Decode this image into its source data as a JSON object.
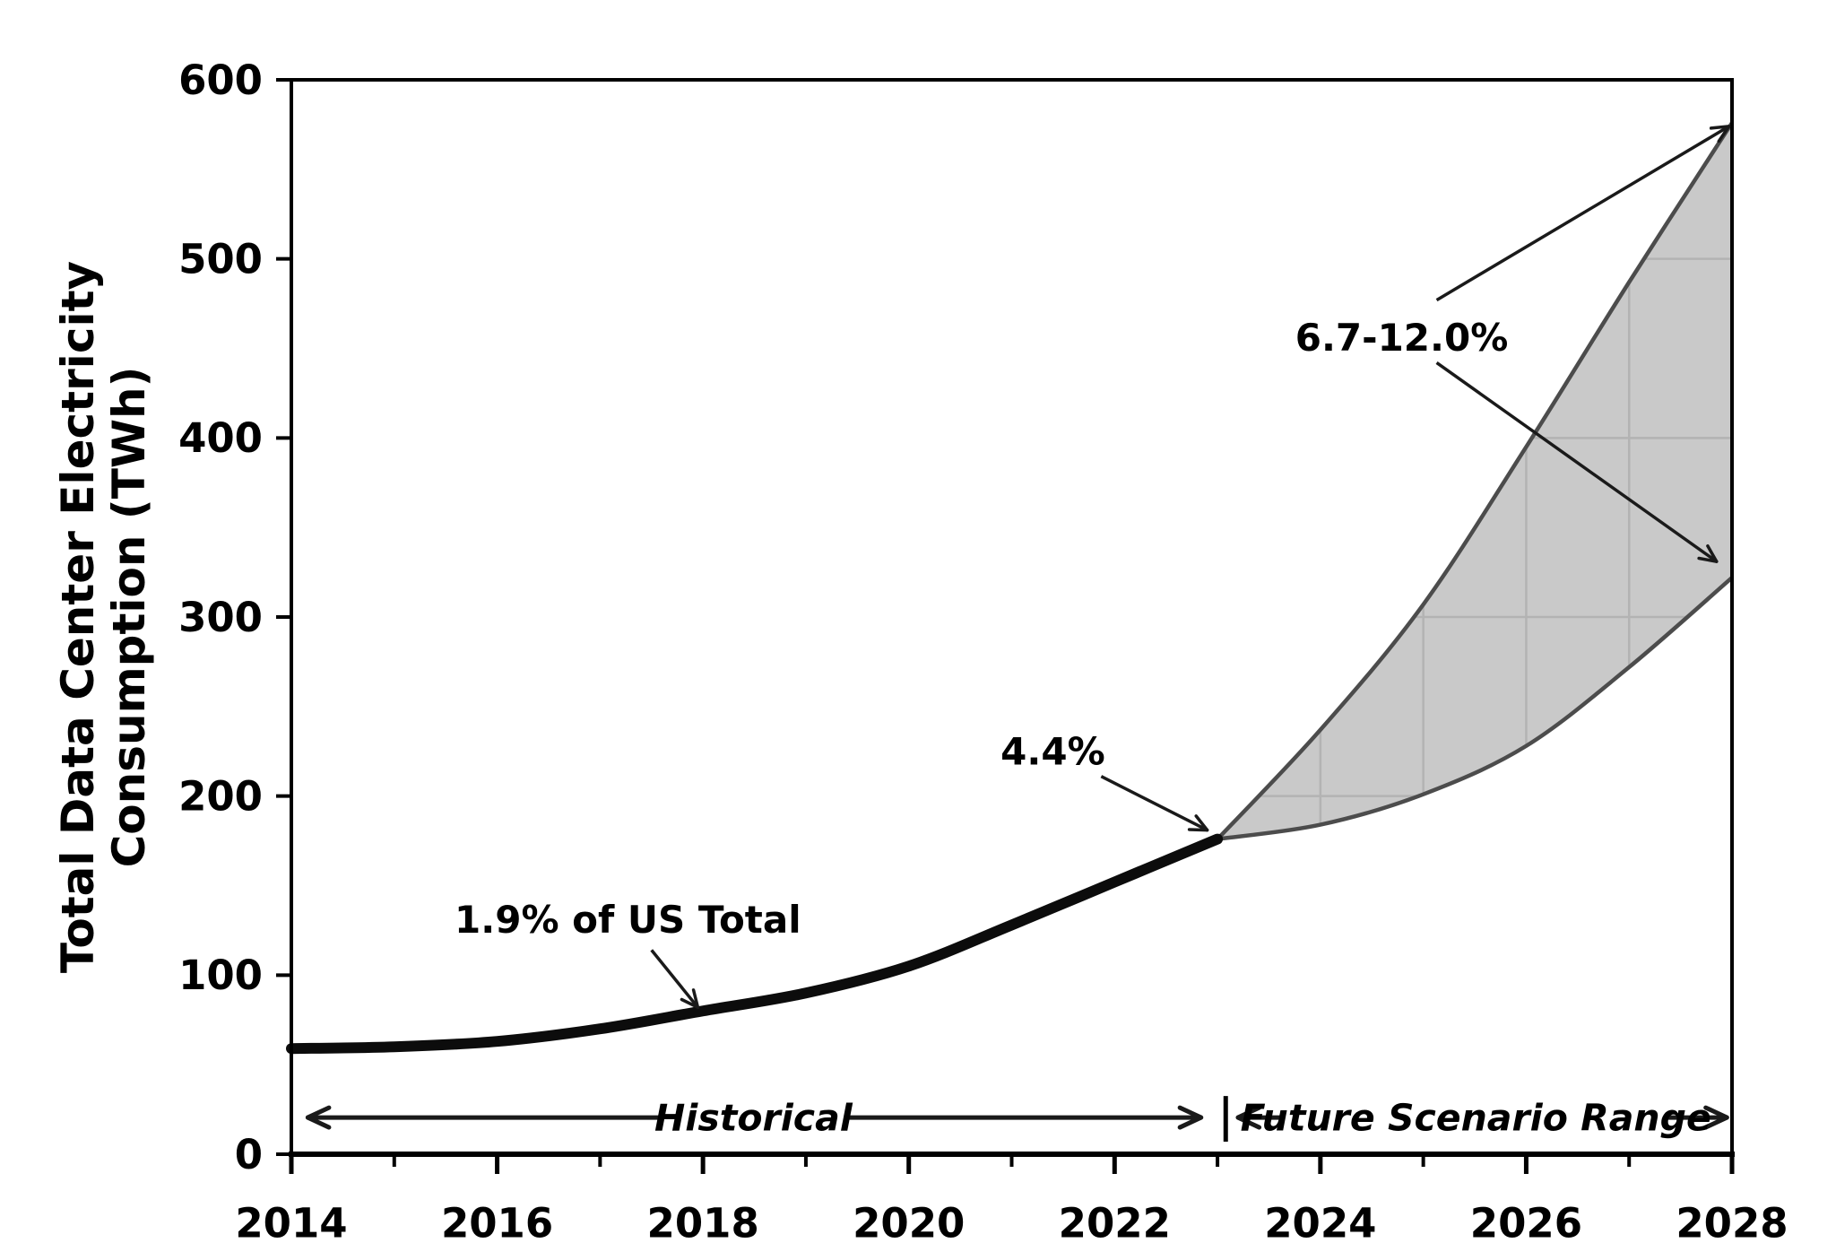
{
  "chart_data": {
    "type": "area",
    "title": "",
    "ylabel_lines": [
      "Total Data Center Electricity",
      "Consumption (TWh)"
    ],
    "xlabel": "",
    "xlim": [
      2014,
      2028
    ],
    "ylim": [
      0,
      600
    ],
    "x_ticks_major": [
      2014,
      2016,
      2018,
      2020,
      2022,
      2024,
      2026,
      2028
    ],
    "x_ticks_minor": [
      2015,
      2017,
      2019,
      2021,
      2023,
      2025,
      2027
    ],
    "y_ticks": [
      0,
      100,
      200,
      300,
      400,
      500,
      600
    ],
    "grid": "faint gridlines visible only inside shaded scenario band",
    "legend_position": "none",
    "series": [
      {
        "name": "historical",
        "x": [
          2014,
          2015,
          2016,
          2017,
          2018,
          2019,
          2020,
          2021,
          2022,
          2023
        ],
        "values": [
          59,
          60,
          63,
          70,
          80,
          90,
          105,
          128,
          152,
          176
        ]
      },
      {
        "name": "future_upper_bound",
        "x": [
          2023,
          2024,
          2025,
          2026,
          2027,
          2028
        ],
        "values": [
          176,
          237,
          307,
          395,
          487,
          576
        ]
      },
      {
        "name": "future_lower_bound",
        "x": [
          2023,
          2024,
          2025,
          2026,
          2027,
          2028
        ],
        "values": [
          176,
          184,
          201,
          228,
          272,
          322
        ]
      }
    ],
    "annotations": [
      {
        "id": "pct-of-us-total-2018",
        "text": "1.9% of US Total",
        "anchor": {
          "year": 2017.27,
          "twh": 131
        },
        "arrows": [
          {
            "from": {
              "year": 2017.5,
              "twh": 114
            },
            "to": {
              "year": 2017.95,
              "twh": 82
            }
          }
        ]
      },
      {
        "id": "pct-of-us-total-2023",
        "text": "4.4%",
        "anchor": {
          "year": 2021.4,
          "twh": 225
        },
        "arrows": [
          {
            "from": {
              "year": 2021.87,
              "twh": 211
            },
            "to": {
              "year": 2022.9,
              "twh": 181
            }
          }
        ]
      },
      {
        "id": "pct-of-us-total-2028",
        "text": "6.7-12.0%",
        "anchor": {
          "year": 2024.79,
          "twh": 456
        },
        "arrows": [
          {
            "from": {
              "year": 2025.13,
              "twh": 477
            },
            "to": {
              "year": 2027.97,
              "twh": 574
            }
          },
          {
            "from": {
              "year": 2025.13,
              "twh": 442
            },
            "to": {
              "year": 2027.85,
              "twh": 331
            }
          }
        ]
      }
    ],
    "range_markers": {
      "historical": {
        "label": "Historical",
        "label_pos": {
          "year": 2018.49,
          "twh": 20.5
        },
        "segments": [
          {
            "from": {
              "year": 2017.6,
              "twh": 20.5
            },
            "to": {
              "year": 2014.16,
              "twh": 20.5
            }
          },
          {
            "from": {
              "year": 2019.37,
              "twh": 20.5
            },
            "to": {
              "year": 2022.84,
              "twh": 20.5
            }
          }
        ]
      },
      "separator": {
        "year": 2023.08,
        "twh_from": 7,
        "twh_to": 32.5
      },
      "future": {
        "label": "Future Scenario Range",
        "label_pos": {
          "year": 2025.51,
          "twh": 20.5
        },
        "segments": [
          {
            "from": {
              "year": 2023.64,
              "twh": 20.5
            },
            "to": {
              "year": 2023.2,
              "twh": 20.5
            }
          },
          {
            "from": {
              "year": 2027.37,
              "twh": 20.5
            },
            "to": {
              "year": 2027.95,
              "twh": 20.5
            }
          }
        ]
      }
    },
    "colors": {
      "background": "#ffffff",
      "historical_line": "#0c0c0c",
      "band_fill": "#c9c9c9",
      "band_edge": "#4c4c4c",
      "band_grid": "#b3b3b3",
      "axis": "#000000",
      "arrow": "#1a1a1a",
      "text": "#000000"
    }
  }
}
